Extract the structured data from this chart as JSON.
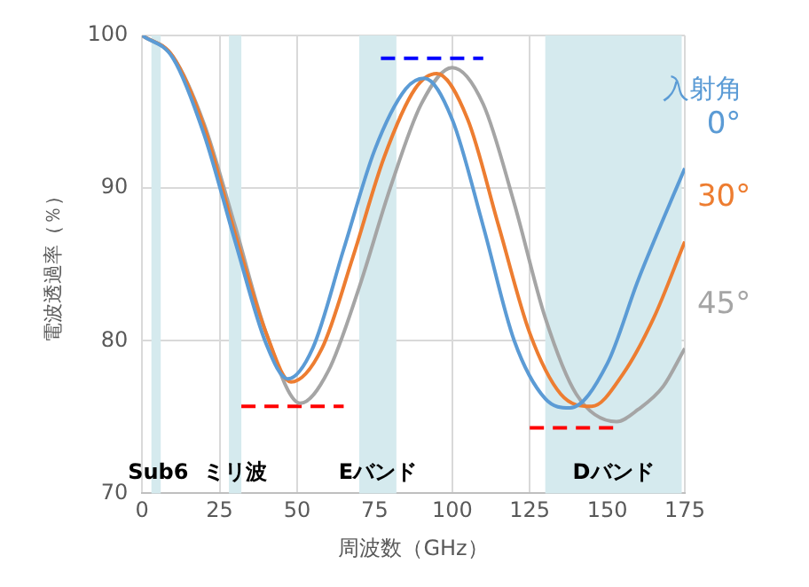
{
  "chart_data": {
    "type": "line",
    "xlabel": "周波数（GHz）",
    "ylabel": "電波透過率（％）",
    "legend_title": "入射角",
    "xlim": [
      0,
      175
    ],
    "xticks": [
      0,
      25,
      50,
      75,
      100,
      125,
      150,
      175
    ],
    "ylim": [
      70,
      100
    ],
    "yticks": [
      70,
      80,
      90,
      100
    ],
    "grid": true,
    "legend": false,
    "series": [
      {
        "name": "0°",
        "color": "#5b9bd5",
        "x": [
          0,
          10,
          20,
          30,
          40,
          47,
          55,
          65,
          75,
          85,
          91,
          100,
          110,
          120,
          130,
          138,
          150,
          160,
          175
        ],
        "values": [
          100,
          98.5,
          93.5,
          86.5,
          79.8,
          77.5,
          79.5,
          86,
          92.5,
          96.5,
          97.2,
          94.5,
          87.5,
          80,
          76.2,
          75.6,
          78.5,
          84,
          91.3
        ]
      },
      {
        "name": "30°",
        "color": "#ed7d31",
        "x": [
          0,
          10,
          20,
          30,
          40,
          48,
          58,
          68,
          78,
          88,
          95,
          105,
          115,
          125,
          135,
          145,
          155,
          165,
          175
        ],
        "values": [
          100,
          98.6,
          94,
          87,
          80.5,
          77.3,
          79.5,
          85.5,
          92,
          96.5,
          97.5,
          94.5,
          87.5,
          80.5,
          76.5,
          75.7,
          77.8,
          81.5,
          86.5
        ]
      },
      {
        "name": "45°",
        "color": "#a5a5a5",
        "x": [
          0,
          10,
          20,
          30,
          40,
          51,
          60,
          70,
          80,
          90,
          100,
          110,
          120,
          130,
          140,
          153,
          160,
          168,
          175
        ],
        "values": [
          100,
          98.6,
          94.2,
          87.5,
          80.5,
          75.9,
          78,
          83.5,
          90,
          95.5,
          97.9,
          95.5,
          89,
          81.5,
          76.5,
          74.7,
          75.5,
          77,
          79.5
        ]
      },
      {
        "color": "#ff0000",
        "line_style": "dashed",
        "x": [
          32,
          65
        ],
        "values": [
          75.7,
          75.7
        ]
      },
      {
        "color": "#0000ff",
        "line_style": "dashed",
        "x": [
          77,
          110
        ],
        "values": [
          98.5,
          98.5
        ]
      },
      {
        "color": "#ff0000",
        "line_style": "dashed",
        "x": [
          125,
          153
        ],
        "values": [
          74.3,
          74.3
        ]
      }
    ],
    "bands": [
      {
        "axis": "x",
        "from": 3,
        "to": 6,
        "label": "Sub6",
        "color": "#d5eaee"
      },
      {
        "axis": "x",
        "from": 28,
        "to": 32,
        "label": "ミリ波",
        "color": "#d5eaee"
      },
      {
        "axis": "x",
        "from": 70,
        "to": 82,
        "label": "Eバンド",
        "color": "#d5eaee"
      },
      {
        "axis": "x",
        "from": 130,
        "to": 174,
        "label": "Dバンド",
        "color": "#d5eaee"
      }
    ]
  }
}
